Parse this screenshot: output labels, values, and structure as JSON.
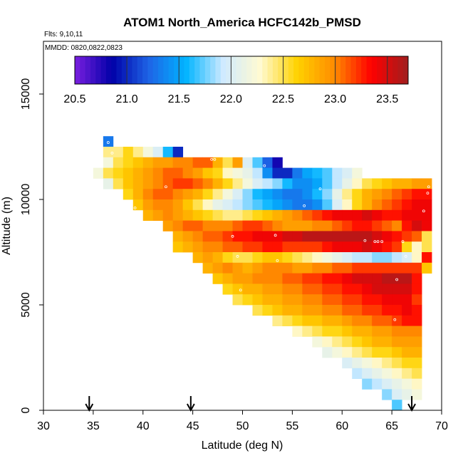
{
  "chart_data": {
    "type": "heatmap",
    "title": "ATOM1 North_America HCFC142b_PMSD",
    "flights_label": "Flts: 9,10,11",
    "dates_label": "MMDD: 0820,0822,0823",
    "xlabel": "Latitude (deg N)",
    "ylabel": "Altitude (m)",
    "xlim": [
      30,
      70
    ],
    "ylim": [
      0,
      17500
    ],
    "x_ticks": [
      "30",
      "35",
      "40",
      "45",
      "50",
      "55",
      "60",
      "65",
      "70"
    ],
    "y_ticks": [
      "0",
      "5000",
      "10000",
      "15000"
    ],
    "colorbar": {
      "min": 20.5,
      "max": 23.7,
      "ticks": [
        "20.5",
        "21.0",
        "21.5",
        "22.0",
        "22.5",
        "23.0",
        "23.5"
      ],
      "colors": [
        "#7b1fe0",
        "#0000a8",
        "#1e64e6",
        "#00b4ff",
        "#cfeaff",
        "#fffad2",
        "#ffd200",
        "#ff8c00",
        "#ff0000",
        "#a01e1e"
      ]
    },
    "cell_size": {
      "lat": 1.0,
      "alt": 500
    },
    "grid": false,
    "arrows_lat": [
      34.6,
      44.8,
      67.0
    ],
    "rows": [
      {
        "alt": 12750,
        "lat0": 36.0,
        "values": [
          21.3
        ]
      },
      {
        "alt": 12250,
        "lat0": 36.0,
        "values": [
          22.4,
          22.4,
          22.6,
          22.4,
          22.2,
          22.0,
          21.6,
          21.0
        ]
      },
      {
        "alt": 11750,
        "lat0": 36.0,
        "values": [
          22.2,
          22.5,
          22.6,
          22.7,
          22.8,
          22.9,
          22.9,
          23.0,
          23.0,
          23.1,
          23.1,
          22.8,
          22.5,
          22.9,
          22.0,
          21.7,
          21.2,
          20.8
        ]
      },
      {
        "alt": 11250,
        "lat0": 35.0,
        "values": [
          22.2,
          22.5,
          22.6,
          22.7,
          22.8,
          22.9,
          23.0,
          23.1,
          23.1,
          23.0,
          22.9,
          22.7,
          22.6,
          22.3,
          22.2,
          22.1,
          21.9,
          21.4,
          21.0,
          21.0,
          21.3,
          21.5,
          21.6,
          21.7,
          21.9,
          22.0,
          22.2
        ]
      },
      {
        "alt": 10750,
        "lat0": 36.0,
        "values": [
          22.1,
          22.5,
          22.7,
          22.8,
          22.9,
          23.0,
          23.1,
          23.2,
          23.2,
          23.1,
          23.0,
          22.8,
          22.6,
          22.4,
          22.2,
          22.0,
          21.9,
          21.8,
          21.6,
          21.4,
          21.4,
          21.5,
          21.7,
          21.9,
          22.1,
          22.3,
          22.5,
          22.6,
          22.7,
          22.8,
          22.8,
          22.9,
          22.9
        ]
      },
      {
        "alt": 10250,
        "lat0": 38.0,
        "values": [
          22.6,
          22.8,
          23.0,
          23.1,
          23.1,
          23.0,
          22.9,
          22.8,
          22.6,
          22.4,
          22.2,
          22.0,
          21.8,
          21.6,
          21.5,
          21.4,
          21.3,
          21.3,
          21.4,
          21.6,
          21.8,
          22.1,
          22.4,
          22.6,
          22.8,
          22.9,
          23.0,
          23.1,
          23.2,
          23.3,
          23.3
        ]
      },
      {
        "alt": 9750,
        "lat0": 39.0,
        "values": [
          22.7,
          22.9,
          23.0,
          23.0,
          22.9,
          22.7,
          22.5,
          22.3,
          22.1,
          22.0,
          21.9,
          21.8,
          21.7,
          21.6,
          21.5,
          21.4,
          21.3,
          21.3,
          21.4,
          21.7,
          22.0,
          22.3,
          22.6,
          22.8,
          23.0,
          23.1,
          23.2,
          23.3,
          23.4,
          23.4
        ]
      },
      {
        "alt": 9250,
        "lat0": 40.0,
        "values": [
          22.8,
          22.9,
          23.0,
          22.9,
          22.8,
          22.7,
          22.6,
          22.5,
          22.4,
          22.4,
          22.5,
          22.6,
          22.7,
          22.8,
          22.9,
          23.0,
          23.1,
          23.2,
          23.3,
          23.4,
          23.4,
          23.4,
          23.5,
          23.4,
          23.3,
          23.3,
          23.4,
          23.4,
          23.4
        ]
      },
      {
        "alt": 8750,
        "lat0": 42.0,
        "values": [
          22.9,
          23.0,
          23.1,
          23.1,
          23.0,
          23.0,
          23.0,
          23.1,
          23.2,
          23.2,
          23.1,
          23.0,
          22.9,
          22.9,
          22.9,
          23.0,
          23.0,
          23.1,
          23.2,
          23.3,
          23.3,
          23.2,
          23.1,
          23.0,
          23.3,
          23.5,
          23.4
        ]
      },
      {
        "alt": 8250,
        "lat0": 43.0,
        "values": [
          22.8,
          22.9,
          23.0,
          23.1,
          23.1,
          23.2,
          23.3,
          23.3,
          23.4,
          23.4,
          23.4,
          23.5,
          23.5,
          23.6,
          23.6,
          23.6,
          23.6,
          23.6,
          23.6,
          23.6,
          23.5,
          23.4,
          23.3,
          23.2,
          23.1,
          22.5
        ]
      },
      {
        "alt": 7750,
        "lat0": 43.0,
        "values": [
          22.7,
          22.8,
          22.9,
          23.0,
          23.0,
          23.1,
          23.1,
          23.2,
          23.2,
          23.3,
          23.3,
          23.2,
          23.2,
          23.2,
          23.2,
          23.3,
          23.4,
          23.4,
          23.4,
          23.5,
          23.4,
          23.3,
          23.2,
          22.6,
          22.3,
          22.5
        ]
      },
      {
        "alt": 7250,
        "lat0": 45.0,
        "values": [
          22.8,
          22.9,
          22.8,
          22.6,
          22.5,
          22.5,
          22.6,
          22.7,
          22.7,
          22.6,
          22.5,
          22.4,
          22.3,
          22.2,
          22.1,
          22.0,
          21.9,
          21.9,
          21.8,
          21.8,
          21.9,
          22.0,
          22.3,
          23.3
        ]
      },
      {
        "alt": 6750,
        "lat0": 46.0,
        "values": [
          22.8,
          22.9,
          23.0,
          22.9,
          22.8,
          22.9,
          23.0,
          23.0,
          23.0,
          22.9,
          22.9,
          23.0,
          23.0,
          23.1,
          23.1,
          23.2,
          23.2,
          23.2,
          23.2,
          23.2,
          23.2,
          23.2,
          22.7
        ]
      },
      {
        "alt": 6250,
        "lat0": 47.0,
        "values": [
          22.7,
          22.8,
          22.9,
          22.9,
          23.0,
          23.0,
          23.0,
          23.1,
          23.1,
          23.2,
          23.2,
          23.3,
          23.3,
          23.4,
          23.5,
          23.5,
          23.5,
          23.6,
          23.6,
          23.6,
          23.3
        ]
      },
      {
        "alt": 5750,
        "lat0": 48.0,
        "values": [
          22.6,
          22.7,
          22.8,
          22.8,
          22.9,
          22.9,
          23.0,
          23.0,
          23.1,
          23.1,
          23.2,
          23.2,
          23.3,
          23.3,
          23.4,
          23.5,
          23.5,
          23.5,
          23.5,
          23.3
        ]
      },
      {
        "alt": 5250,
        "lat0": 49.0,
        "values": [
          22.5,
          22.6,
          22.7,
          22.8,
          22.8,
          22.9,
          22.9,
          23.0,
          23.0,
          23.1,
          23.1,
          23.2,
          23.2,
          23.3,
          23.3,
          23.4,
          23.4,
          23.4,
          23.2
        ]
      },
      {
        "alt": 4750,
        "lat0": 51.0,
        "values": [
          22.5,
          22.6,
          22.7,
          22.8,
          22.8,
          22.9,
          22.9,
          23.0,
          23.0,
          23.1,
          23.1,
          23.2,
          23.2,
          23.3,
          23.3,
          23.4,
          23.3
        ]
      },
      {
        "alt": 4250,
        "lat0": 53.0,
        "values": [
          22.4,
          22.5,
          22.6,
          22.7,
          22.7,
          22.8,
          22.8,
          22.9,
          23.0,
          23.0,
          23.1,
          23.1,
          23.2,
          23.3,
          23.3
        ]
      },
      {
        "alt": 3750,
        "lat0": 55.0,
        "values": [
          22.3,
          22.4,
          22.5,
          22.6,
          22.6,
          22.7,
          22.8,
          22.8,
          22.9,
          22.9,
          23.0,
          23.0,
          23.0
        ]
      },
      {
        "alt": 3250,
        "lat0": 57.0,
        "values": [
          22.2,
          22.3,
          22.4,
          22.5,
          22.6,
          22.7,
          22.8,
          22.8,
          22.9,
          22.9,
          22.9
        ]
      },
      {
        "alt": 2750,
        "lat0": 58.0,
        "values": [
          22.1,
          22.2,
          22.3,
          22.4,
          22.5,
          22.6,
          22.6,
          22.7,
          22.8,
          22.8
        ]
      },
      {
        "alt": 2250,
        "lat0": 60.0,
        "values": [
          22.0,
          22.1,
          22.2,
          22.3,
          22.4,
          22.5,
          22.6,
          22.6
        ]
      },
      {
        "alt": 1750,
        "lat0": 61.0,
        "values": [
          21.9,
          22.0,
          22.1,
          22.2,
          22.3,
          22.4,
          22.5
        ]
      },
      {
        "alt": 1250,
        "lat0": 62.0,
        "values": [
          21.8,
          21.9,
          22.0,
          22.1,
          22.2,
          22.3
        ]
      },
      {
        "alt": 750,
        "lat0": 64.0,
        "values": [
          21.8,
          22.0,
          22.1,
          22.2
        ]
      },
      {
        "alt": 250,
        "lat0": 65.0,
        "values": [
          21.7
        ]
      }
    ],
    "markers": [
      [
        36.5,
        12700
      ],
      [
        36.9,
        12200
      ],
      [
        46.9,
        11900
      ],
      [
        47.2,
        11900
      ],
      [
        52.2,
        11600
      ],
      [
        42.3,
        10600
      ],
      [
        57.8,
        10500
      ],
      [
        56.2,
        9700
      ],
      [
        68.7,
        10600
      ],
      [
        68.6,
        10300
      ],
      [
        39.2,
        9600
      ],
      [
        68.2,
        9450
      ],
      [
        49.0,
        8250
      ],
      [
        53.3,
        8300
      ],
      [
        62.3,
        8050
      ],
      [
        63.3,
        8000
      ],
      [
        63.6,
        8000
      ],
      [
        64.0,
        8000
      ],
      [
        66.1,
        8000
      ],
      [
        49.5,
        7300
      ],
      [
        53.5,
        7100
      ],
      [
        66.4,
        7300
      ],
      [
        65.5,
        6200
      ],
      [
        49.8,
        5700
      ],
      [
        65.3,
        4300
      ]
    ]
  }
}
